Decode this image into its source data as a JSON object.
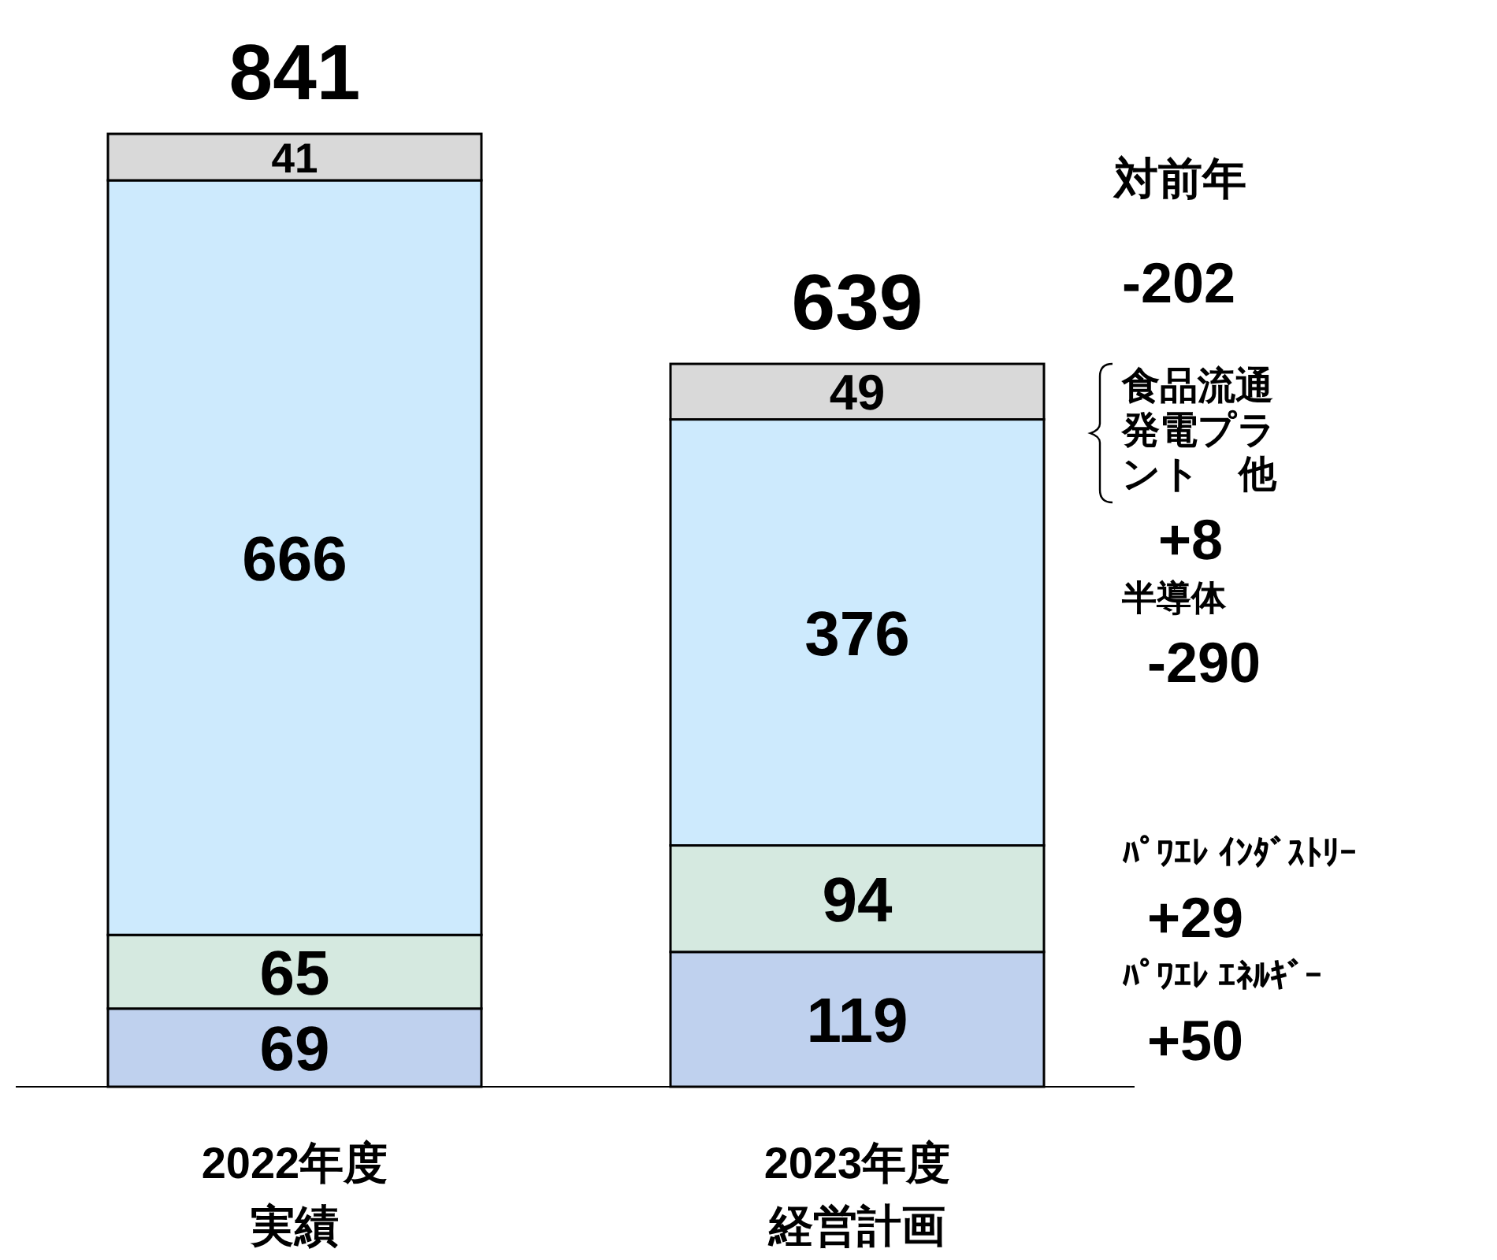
{
  "chart_data": {
    "type": "bar",
    "stacked": true,
    "data_labels": true,
    "legend": "right",
    "categories": [
      "2022年度実績",
      "2023年度経営計画"
    ],
    "series": [
      {
        "name": "ﾊﾟﾜｴﾚ ｴﾈﾙｷﾞｰ",
        "color": "#bfd1ee",
        "values": [
          69,
          119
        ]
      },
      {
        "name": "ﾊﾟﾜｴﾚ ｲﾝﾀﾞｽﾄﾘｰ",
        "color": "#d5e9e0",
        "values": [
          65,
          94
        ]
      },
      {
        "name": "半導体",
        "color": "#cdeafd",
        "values": [
          666,
          376
        ]
      },
      {
        "name": "食品流通発電プラント　他",
        "color": "#d9d9d9",
        "values": [
          41,
          49
        ]
      }
    ],
    "totals": [
      "841",
      "639"
    ],
    "annotations": [
      "対前年",
      "-202",
      "+50",
      "+29",
      "-290",
      "+8"
    ]
  }
}
